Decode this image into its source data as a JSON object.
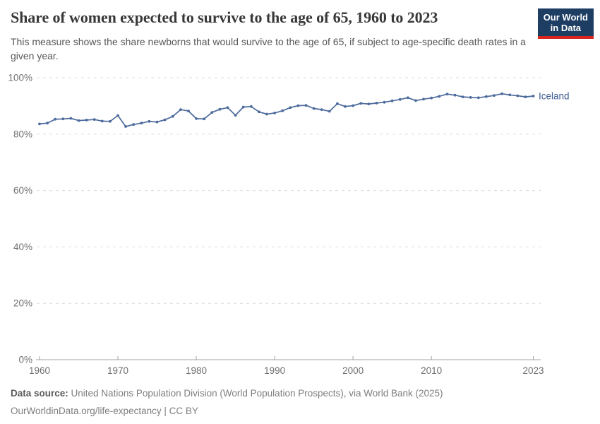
{
  "colors": {
    "line": "#4C6A9C",
    "series_label": "#3d5a8f",
    "logo_bg": "#1d3d63",
    "logo_accent": "#d7261e",
    "gridline": "#dcdcdc",
    "axis_line": "#a3a3a3",
    "tick_label": "#6e6e6e"
  },
  "header": {
    "title": "Share of women expected to survive to the age of 65, 1960 to 2023",
    "subtitle": "This measure shows the share newborns that would survive to the age of 65, if subject to age-specific death rates in a given year.",
    "logo": {
      "line1": "Our World",
      "line2": "in Data"
    }
  },
  "chart_data": {
    "type": "line",
    "title": "Share of women expected to survive to the age of 65, 1960 to 2023",
    "xlabel": "",
    "ylabel": "",
    "xlim": [
      1960,
      2023
    ],
    "ylim": [
      0,
      100
    ],
    "grid": "horizontal-dashed",
    "legend_position": "end-of-line-label",
    "x_ticks": [
      1960,
      1970,
      1980,
      1990,
      2000,
      2010,
      2023
    ],
    "y_ticks": [
      0,
      20,
      40,
      60,
      80,
      100
    ],
    "y_tick_suffix": "%",
    "series": [
      {
        "name": "Iceland",
        "color": "#4C6A9C",
        "x": [
          1960,
          1961,
          1962,
          1963,
          1964,
          1965,
          1966,
          1967,
          1968,
          1969,
          1970,
          1971,
          1972,
          1973,
          1974,
          1975,
          1976,
          1977,
          1978,
          1979,
          1980,
          1981,
          1982,
          1983,
          1984,
          1985,
          1986,
          1987,
          1988,
          1989,
          1990,
          1991,
          1992,
          1993,
          1994,
          1995,
          1996,
          1997,
          1998,
          1999,
          2000,
          2001,
          2002,
          2003,
          2004,
          2005,
          2006,
          2007,
          2008,
          2009,
          2010,
          2011,
          2012,
          2013,
          2014,
          2015,
          2016,
          2017,
          2018,
          2019,
          2020,
          2021,
          2022,
          2023
        ],
        "values": [
          83.6,
          83.9,
          85.3,
          85.4,
          85.6,
          84.8,
          85.0,
          85.2,
          84.6,
          84.5,
          86.6,
          82.7,
          83.4,
          83.9,
          84.5,
          84.3,
          85.1,
          86.3,
          88.7,
          88.2,
          85.5,
          85.4,
          87.7,
          88.8,
          89.4,
          86.7,
          89.6,
          89.8,
          87.9,
          87.1,
          87.5,
          88.3,
          89.4,
          90.1,
          90.2,
          89.1,
          88.7,
          88.1,
          90.8,
          89.8,
          90.1,
          90.9,
          90.7,
          91.0,
          91.3,
          91.8,
          92.3,
          92.9,
          91.9,
          92.4,
          92.8,
          93.4,
          94.2,
          93.8,
          93.2,
          93.0,
          92.9,
          93.3,
          93.7,
          94.3,
          93.9,
          93.6,
          93.2,
          93.5
        ]
      }
    ]
  },
  "footer": {
    "source_label": "Data source:",
    "source_text": " United Nations Population Division (World Population Prospects), via World Bank (2025)",
    "note_text": "OurWorldinData.org/life-expectancy | CC BY"
  }
}
